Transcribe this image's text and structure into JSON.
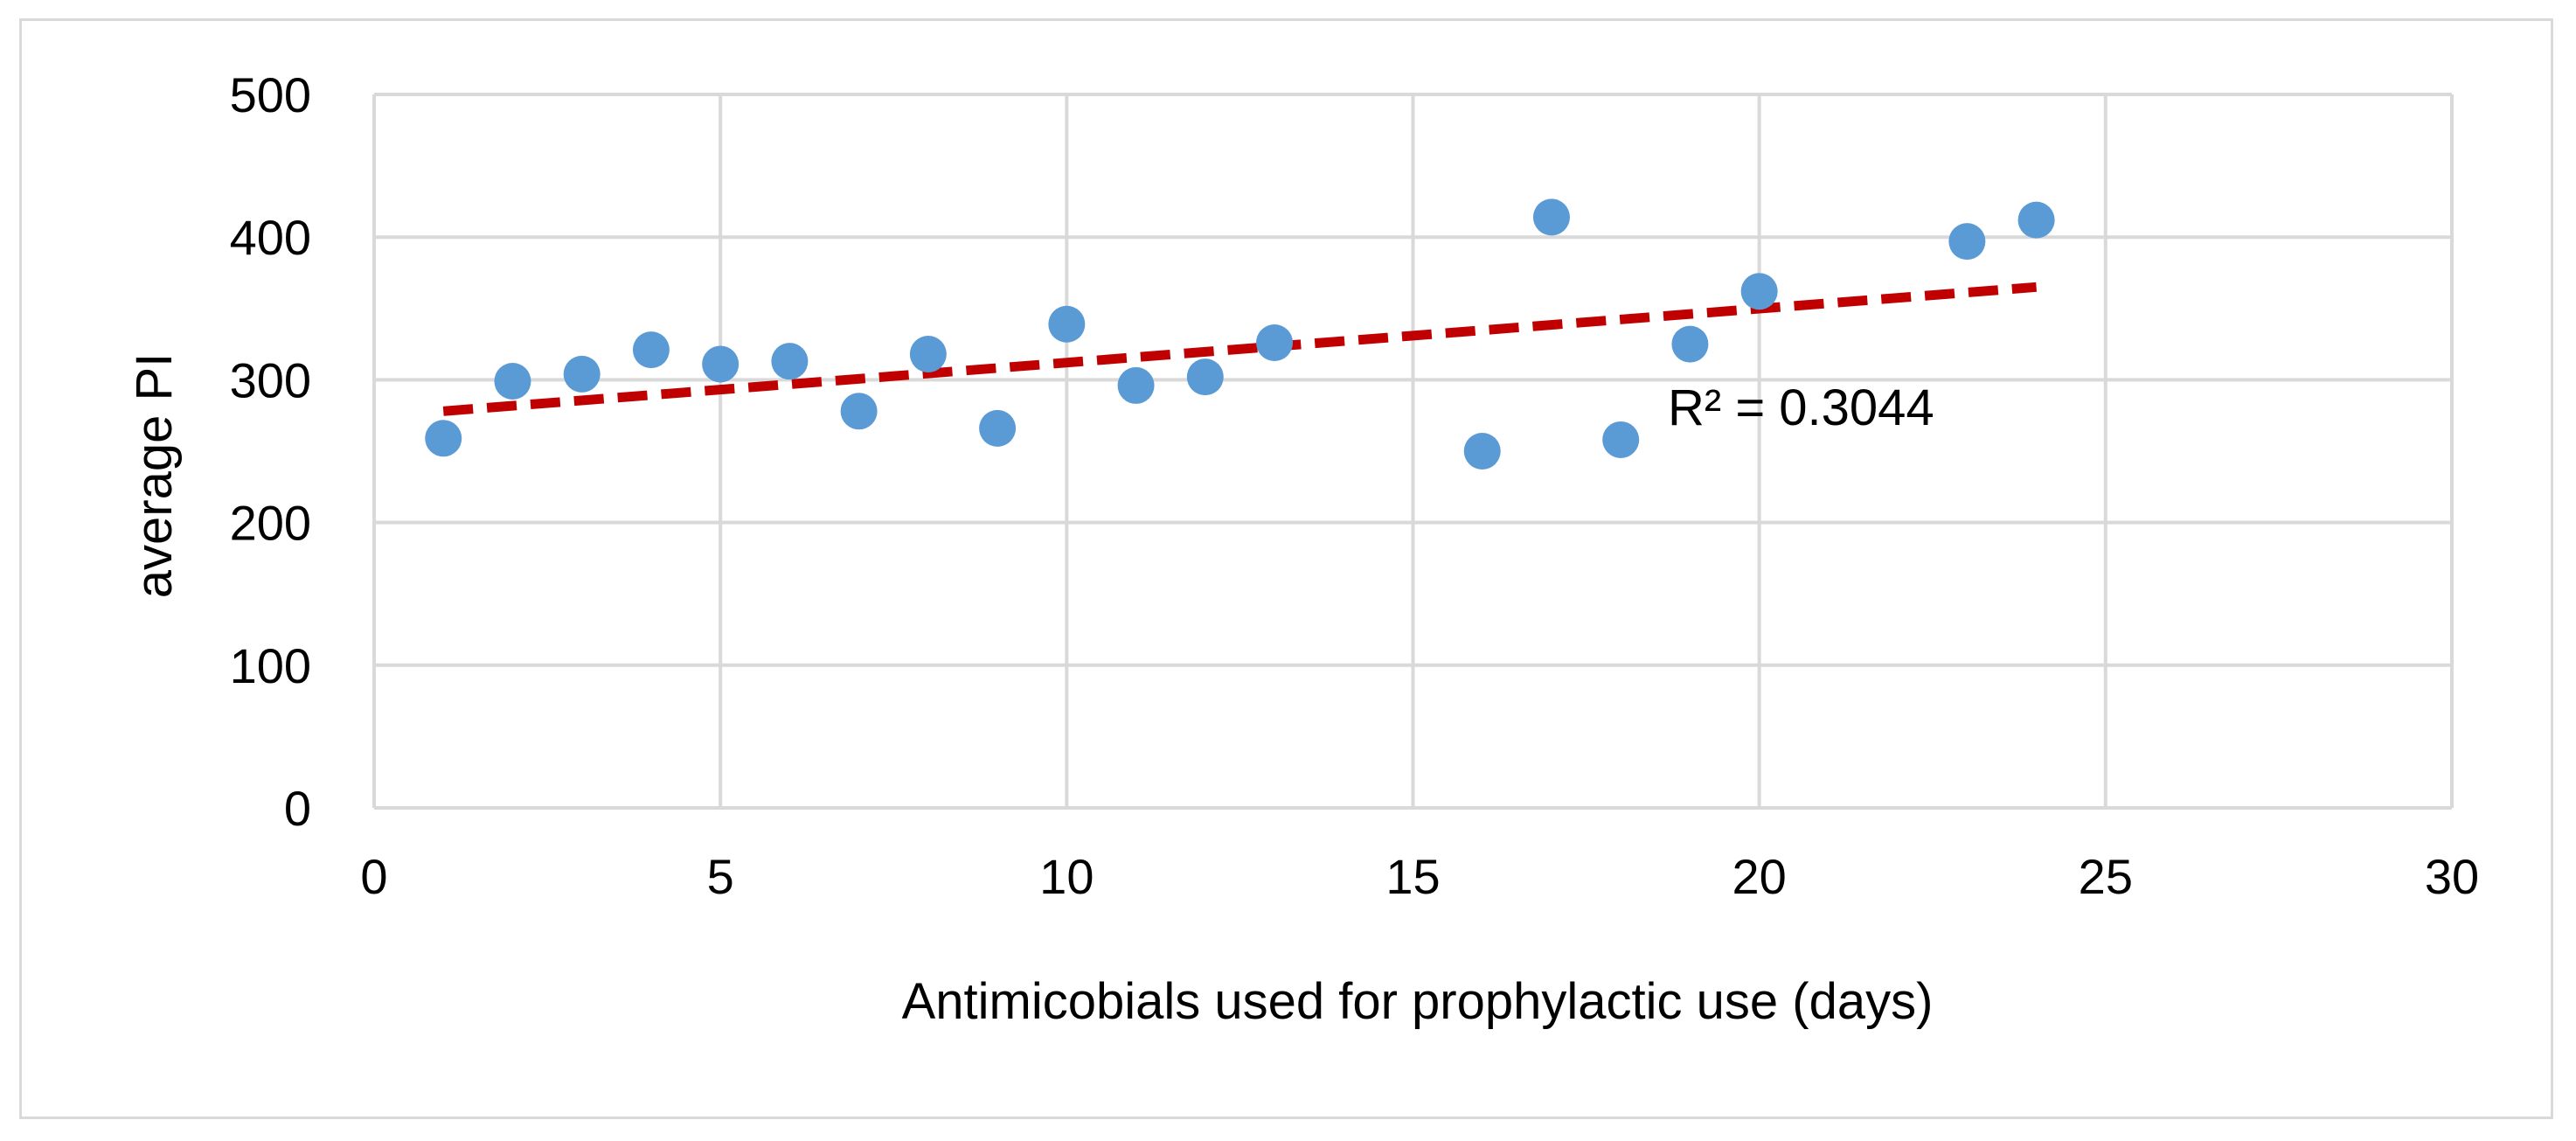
{
  "colors": {
    "point": "#5b9bd5",
    "trendline": "#c00000",
    "grid": "#d9d9d9",
    "axis": "#d9d9d9",
    "text": "#000000"
  },
  "chart_data": {
    "type": "scatter",
    "title": "",
    "xlabel": "Antimicobials used for prophylactic use (days)",
    "ylabel": "average PI",
    "xlim": [
      0,
      30
    ],
    "ylim": [
      0,
      500
    ],
    "xticks": [
      0,
      5,
      10,
      15,
      20,
      25,
      30
    ],
    "yticks": [
      0,
      100,
      200,
      300,
      400,
      500
    ],
    "grid": true,
    "legend": "none",
    "series": [
      {
        "name": "average PI",
        "x": [
          1,
          2,
          3,
          4,
          5,
          6,
          7,
          8,
          9,
          10,
          11,
          12,
          13,
          16,
          17,
          18,
          19,
          20,
          23,
          24
        ],
        "y": [
          259,
          299,
          304,
          321,
          311,
          313,
          278,
          318,
          266,
          339,
          296,
          302,
          326,
          250,
          414,
          258,
          325,
          362,
          397,
          412
        ]
      }
    ],
    "trendline": {
      "type": "linear",
      "style": "dashed",
      "x_start": 1,
      "x_end": 24,
      "y_start": 278,
      "y_end": 365,
      "annotation": "R² = 0.3044"
    }
  }
}
